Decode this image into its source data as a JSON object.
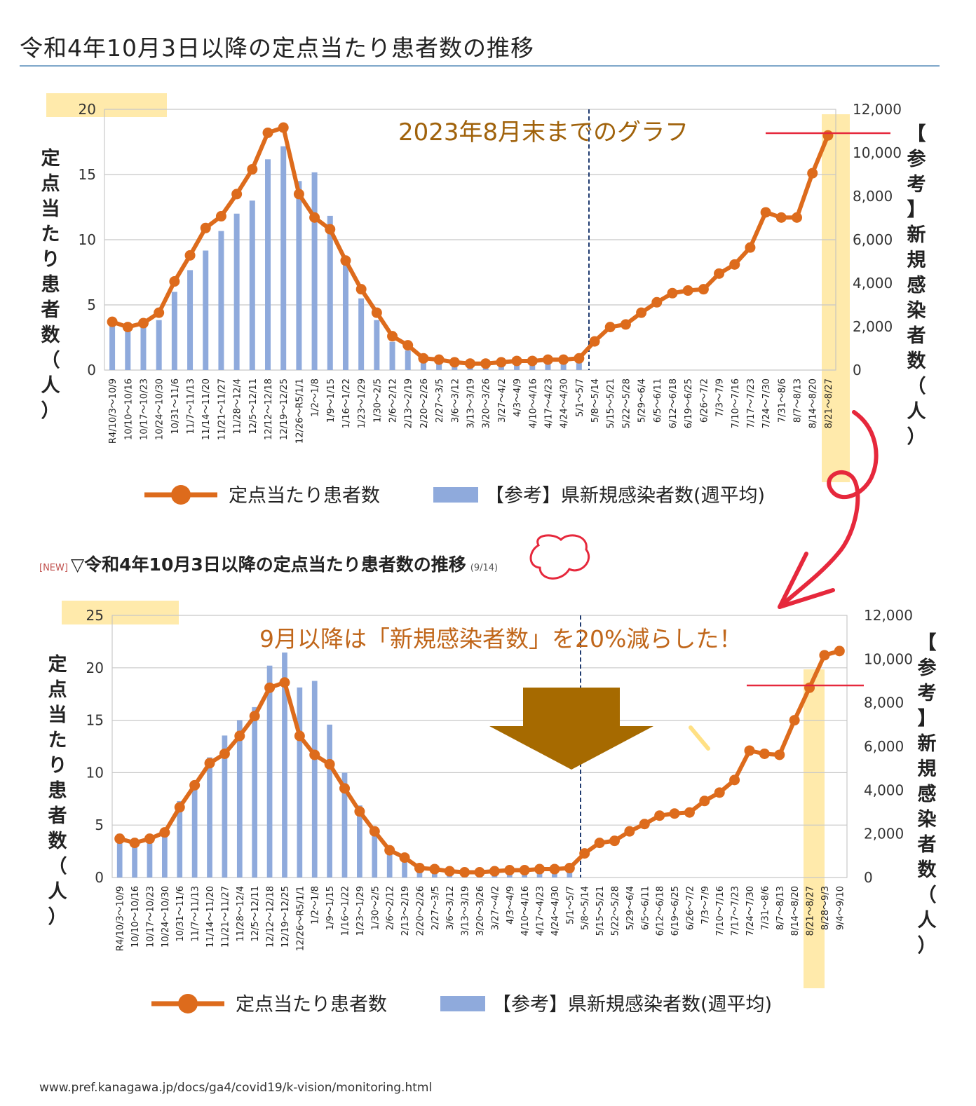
{
  "page_title": "令和4年10月3日以降の定点当たり患者数の推移",
  "subhead": {
    "new_tag": "[NEW]",
    "title": "▽令和4年10月3日以降の定点当たり患者数の推移",
    "date": "(9/14)"
  },
  "footer_url": "www.pref.kanagawa.jp/docs/ga4/covid19/k-vision/monitoring.html",
  "colors": {
    "line": "#dd6b1c",
    "bar": "#8faadc",
    "highlight": "#ffd966",
    "annotation_red": "#e6283c",
    "arrow": "#a66a00",
    "title_rule": "#7ea7c9"
  },
  "chart_data": [
    {
      "type": "bar",
      "combo": "bar+line",
      "note": "2023年8月末までのグラフ",
      "y_left_label": "定点当たり患者数（人）",
      "y_right_label": "【参考】新規感染者数（人）",
      "ylim_left": [
        0,
        20
      ],
      "yticks_left": [
        "0",
        "5",
        "10",
        "15",
        "20"
      ],
      "ylim_right": [
        0,
        12000
      ],
      "yticks_right": [
        "0",
        "2,000",
        "4,000",
        "6,000",
        "8,000",
        "10,000",
        "12,000"
      ],
      "grid": true,
      "legend_position": "bottom",
      "categories": [
        "R4/10/3～10/9",
        "10/10～10/16",
        "10/17～10/23",
        "10/24～10/30",
        "10/31～11/6",
        "11/7～11/13",
        "11/14～11/20",
        "11/21～11/27",
        "11/28～12/4",
        "12/5～12/11",
        "12/12～12/18",
        "12/19～12/25",
        "12/26～R5/1/1",
        "1/2～1/8",
        "1/9～1/15",
        "1/16～1/22",
        "1/23～1/29",
        "1/30～2/5",
        "2/6～2/12",
        "2/13～2/19",
        "2/20～2/26",
        "2/27～3/5",
        "3/6～3/12",
        "3/13～3/19",
        "3/20～3/26",
        "3/27～4/2",
        "4/3～4/9",
        "4/10～4/16",
        "4/17～4/23",
        "4/24～4/30",
        "5/1～5/7",
        "5/8～5/14",
        "5/15～5/21",
        "5/22～5/28",
        "5/29～6/4",
        "6/5～6/11",
        "6/12～6/18",
        "6/19～6/25",
        "6/26～7/2",
        "7/3～7/9",
        "7/10～7/16",
        "7/17～7/23",
        "7/24～7/30",
        "7/31～8/6",
        "8/7～8/13",
        "8/14～8/20",
        "8/21～8/27"
      ],
      "series": [
        {
          "name": "定点当たり患者数",
          "kind": "line",
          "axis": "left",
          "values": [
            3.7,
            3.3,
            3.6,
            4.4,
            6.8,
            8.8,
            10.9,
            11.8,
            13.5,
            15.4,
            18.2,
            18.6,
            13.5,
            11.7,
            10.8,
            8.4,
            6.2,
            4.4,
            2.6,
            1.9,
            0.9,
            0.8,
            0.6,
            0.5,
            0.5,
            0.6,
            0.7,
            0.7,
            0.8,
            0.8,
            0.9,
            2.2,
            3.3,
            3.5,
            4.4,
            5.2,
            5.9,
            6.1,
            6.2,
            7.4,
            8.1,
            9.4,
            12.1,
            11.7,
            11.7,
            15.1,
            18.0
          ]
        },
        {
          "name": "【参考】県新規感染者数(週平均)",
          "kind": "bar",
          "axis": "right",
          "values": [
            2200,
            1900,
            1950,
            2300,
            3600,
            4600,
            5500,
            6400,
            7200,
            7800,
            9700,
            10300,
            8700,
            9100,
            7100,
            4900,
            3300,
            2300,
            1300,
            900,
            480,
            380,
            300,
            270,
            270,
            330,
            360,
            400,
            420,
            480,
            560,
            0,
            0,
            0,
            0,
            0,
            0,
            0,
            0,
            0,
            0,
            0,
            0,
            0,
            0,
            0,
            0
          ]
        }
      ]
    },
    {
      "type": "bar",
      "combo": "bar+line",
      "note": "9月以降は「新規感染者数」を20%減らした！",
      "y_left_label": "定点当たり患者数（人）",
      "y_right_label": "【参考】新規感染者数（人）",
      "ylim_left": [
        0,
        25
      ],
      "yticks_left": [
        "0",
        "5",
        "10",
        "15",
        "20",
        "25"
      ],
      "ylim_right": [
        0,
        12000
      ],
      "yticks_right": [
        "0",
        "2,000",
        "4,000",
        "6,000",
        "8,000",
        "10,000",
        "12,000"
      ],
      "grid": true,
      "legend_position": "bottom",
      "categories": [
        "R4/10/3～10/9",
        "10/10～10/16",
        "10/17～10/23",
        "10/24～10/30",
        "10/31～11/6",
        "11/7～11/13",
        "11/14～11/20",
        "11/21～11/27",
        "11/28～12/4",
        "12/5～12/11",
        "12/12～12/18",
        "12/19～12/25",
        "12/26～R5/1/1",
        "1/2～1/8",
        "1/9～1/15",
        "1/16～1/22",
        "1/23～1/29",
        "1/30～2/5",
        "2/6～2/12",
        "2/13～2/19",
        "2/20～2/26",
        "2/27～3/5",
        "3/6～3/12",
        "3/13～3/19",
        "3/20～3/26",
        "3/27～4/2",
        "4/3～4/9",
        "4/10～4/16",
        "4/17～4/23",
        "4/24～4/30",
        "5/1～5/7",
        "5/8～5/14",
        "5/15～5/21",
        "5/22～5/28",
        "5/29～6/4",
        "6/5～6/11",
        "6/12～6/18",
        "6/19～6/25",
        "6/26～7/2",
        "7/3～7/9",
        "7/10～7/16",
        "7/17～7/23",
        "7/24～7/30",
        "7/31～8/6",
        "8/7～8/13",
        "8/14～8/20",
        "8/21～8/27",
        "8/28～9/3",
        "9/4～9/10"
      ],
      "series": [
        {
          "name": "定点当たり患者数",
          "kind": "line",
          "axis": "left",
          "values": [
            3.7,
            3.3,
            3.7,
            4.3,
            6.7,
            8.8,
            10.9,
            11.8,
            13.5,
            15.4,
            18.1,
            18.6,
            13.5,
            11.7,
            10.8,
            8.5,
            6.3,
            4.4,
            2.6,
            1.9,
            0.9,
            0.8,
            0.6,
            0.5,
            0.5,
            0.6,
            0.7,
            0.7,
            0.8,
            0.8,
            0.9,
            2.3,
            3.3,
            3.5,
            4.4,
            5.1,
            5.9,
            6.1,
            6.2,
            7.3,
            8.1,
            9.3,
            12.1,
            11.8,
            11.7,
            15.0,
            18.1,
            21.2,
            21.6
          ]
        },
        {
          "name": "【参考】県新規感染者数(週平均)",
          "kind": "bar",
          "axis": "right",
          "values": [
            2000,
            1800,
            1800,
            2200,
            3500,
            4400,
            5500,
            6500,
            7200,
            7800,
            9700,
            10300,
            8700,
            9000,
            7000,
            4800,
            3300,
            2200,
            1200,
            900,
            450,
            380,
            300,
            280,
            280,
            320,
            360,
            400,
            420,
            480,
            560,
            0,
            0,
            0,
            0,
            0,
            0,
            0,
            0,
            0,
            0,
            0,
            0,
            0,
            0,
            0,
            0,
            0,
            0
          ]
        }
      ]
    }
  ]
}
